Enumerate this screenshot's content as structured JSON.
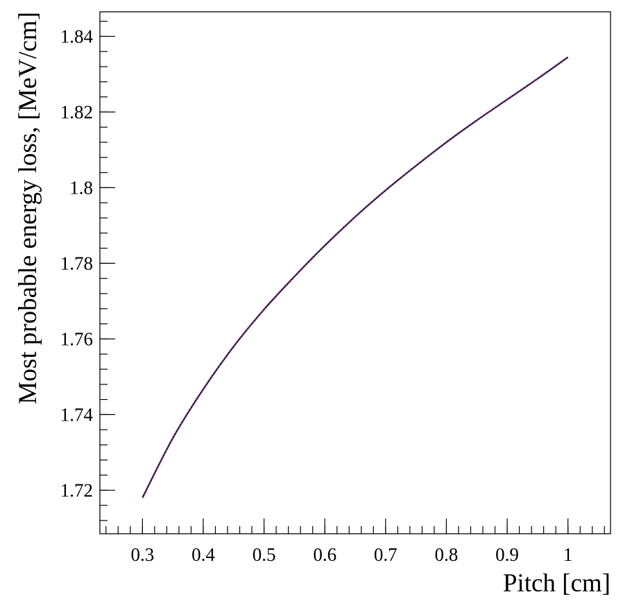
{
  "chart_data": {
    "type": "line",
    "title": "",
    "xlabel": "Pitch [cm]",
    "ylabel": "Most probable energy loss, [MeV/cm]",
    "xlim": [
      0.23,
      1.07
    ],
    "ylim": [
      1.7085,
      1.8465
    ],
    "x_ticks": [
      {
        "value": 0.3,
        "label": "0.3"
      },
      {
        "value": 0.4,
        "label": "0.4"
      },
      {
        "value": 0.5,
        "label": "0.5"
      },
      {
        "value": 0.6,
        "label": "0.6"
      },
      {
        "value": 0.7,
        "label": "0.7"
      },
      {
        "value": 0.8,
        "label": "0.8"
      },
      {
        "value": 0.9,
        "label": "0.9"
      },
      {
        "value": 1.0,
        "label": "1"
      }
    ],
    "y_ticks": [
      {
        "value": 1.72,
        "label": "1.72"
      },
      {
        "value": 1.74,
        "label": "1.74"
      },
      {
        "value": 1.76,
        "label": "1.76"
      },
      {
        "value": 1.78,
        "label": "1.78"
      },
      {
        "value": 1.8,
        "label": "1.8"
      },
      {
        "value": 1.82,
        "label": "1.82"
      },
      {
        "value": 1.84,
        "label": "1.84"
      }
    ],
    "grid": false,
    "series": [
      {
        "color": "#cc2277",
        "x": [
          0.3,
          0.35,
          0.4,
          0.45,
          0.5,
          0.55,
          0.6,
          0.65,
          0.7,
          0.75,
          0.8,
          0.85,
          0.9,
          0.95,
          1.0
        ],
        "y": [
          1.718,
          1.7338,
          1.7467,
          1.758,
          1.7678,
          1.7765,
          1.7847,
          1.7923,
          1.7993,
          1.8058,
          1.812,
          1.8178,
          1.8233,
          1.8288,
          1.8345
        ]
      }
    ]
  }
}
